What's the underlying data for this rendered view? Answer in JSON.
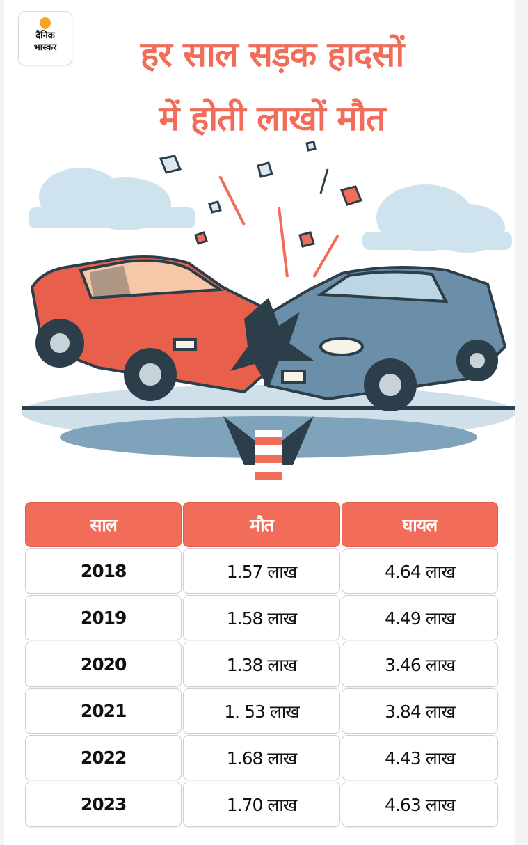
{
  "logo": {
    "line1": "दैनिक",
    "line2": "भास्कर"
  },
  "title": {
    "line1": "हर साल सड़क हादसों",
    "line2": "में होती लाखों मौत"
  },
  "illustration": {
    "icon": "car-crash-illustration",
    "car_left_color": "#e8604c",
    "car_right_color": "#6b8fa8"
  },
  "colors": {
    "accent": "#f26c5a"
  },
  "table": {
    "headers": [
      "साल",
      "मौत",
      "घायल"
    ],
    "rows": [
      {
        "year": "2018",
        "deaths": "1.57 लाख",
        "injured": "4.64 लाख"
      },
      {
        "year": "2019",
        "deaths": "1.58 लाख",
        "injured": "4.49 लाख"
      },
      {
        "year": "2020",
        "deaths": "1.38 लाख",
        "injured": "3.46 लाख"
      },
      {
        "year": "2021",
        "deaths": "1. 53 लाख",
        "injured": "3.84 लाख"
      },
      {
        "year": "2022",
        "deaths": "1.68 लाख",
        "injured": "4.43 लाख"
      },
      {
        "year": "2023",
        "deaths": "1.70 लाख",
        "injured": "4.63 लाख"
      }
    ]
  }
}
